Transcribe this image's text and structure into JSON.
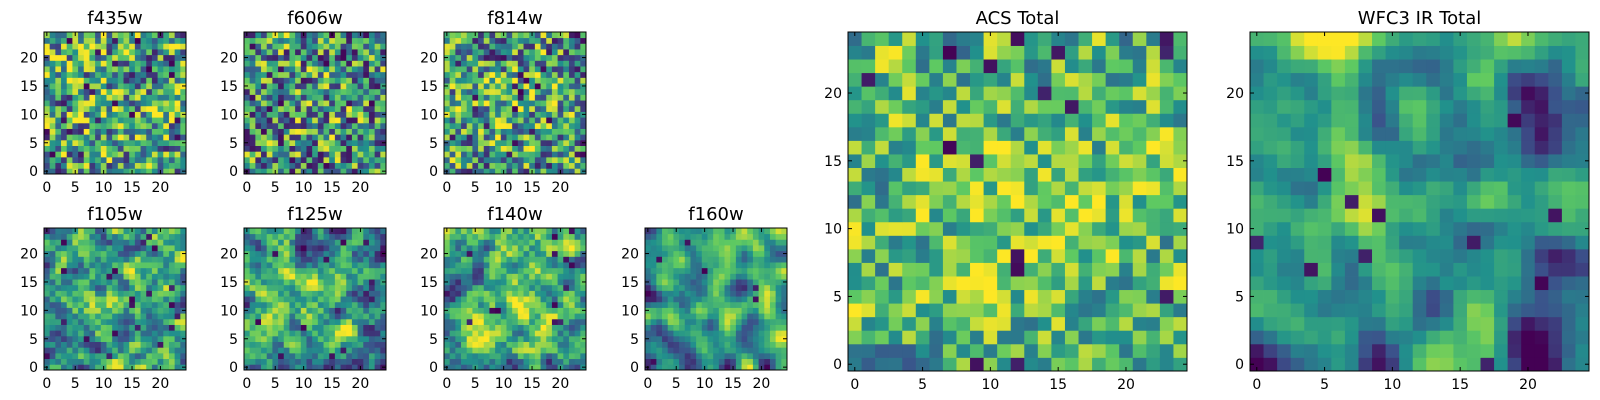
{
  "colormap": [
    "#440154",
    "#3b528b",
    "#21918c",
    "#5ec962",
    "#fde725"
  ],
  "chart_data": [
    {
      "type": "heatmap",
      "title": "f435w",
      "size": 25,
      "seed": 11,
      "smooth": 0.15,
      "dark_rate": 0.05,
      "bias": 0.58,
      "contrast": 0.95,
      "center_boost": 0.05,
      "xticks": [
        0,
        5,
        10,
        15,
        20
      ],
      "yticks": [
        0,
        5,
        10,
        15,
        20
      ],
      "xlim": [
        0,
        25
      ],
      "ylim": [
        0,
        25
      ]
    },
    {
      "type": "heatmap",
      "title": "f606w",
      "size": 25,
      "seed": 23,
      "smooth": 0.2,
      "dark_rate": 0.06,
      "bias": 0.52,
      "contrast": 0.95,
      "center_boost": 0.06,
      "xticks": [
        0,
        5,
        10,
        15,
        20
      ],
      "yticks": [
        0,
        5,
        10,
        15,
        20
      ],
      "xlim": [
        0,
        25
      ],
      "ylim": [
        0,
        25
      ]
    },
    {
      "type": "heatmap",
      "title": "f814w",
      "size": 25,
      "seed": 37,
      "smooth": 0.25,
      "dark_rate": 0.05,
      "bias": 0.54,
      "contrast": 0.95,
      "center_boost": 0.12,
      "xticks": [
        0,
        5,
        10,
        15,
        20
      ],
      "yticks": [
        0,
        5,
        10,
        15,
        20
      ],
      "xlim": [
        0,
        25
      ],
      "ylim": [
        0,
        25
      ]
    },
    {
      "type": "heatmap",
      "title": "f105w",
      "size": 25,
      "seed": 41,
      "smooth": 0.55,
      "dark_rate": 0.03,
      "bias": 0.55,
      "contrast": 1.05,
      "center_boost": 0.2,
      "xticks": [
        0,
        5,
        10,
        15,
        20
      ],
      "yticks": [
        0,
        5,
        10,
        15,
        20
      ],
      "xlim": [
        0,
        25
      ],
      "ylim": [
        0,
        25
      ]
    },
    {
      "type": "heatmap",
      "title": "f125w",
      "size": 25,
      "seed": 53,
      "smooth": 0.55,
      "dark_rate": 0.03,
      "bias": 0.52,
      "contrast": 1.05,
      "center_boost": 0.12,
      "xticks": [
        0,
        5,
        10,
        15,
        20
      ],
      "yticks": [
        0,
        5,
        10,
        15,
        20
      ],
      "xlim": [
        0,
        25
      ],
      "ylim": [
        0,
        25
      ]
    },
    {
      "type": "heatmap",
      "title": "f140w",
      "size": 25,
      "seed": 67,
      "smooth": 0.6,
      "dark_rate": 0.02,
      "bias": 0.55,
      "contrast": 1.0,
      "center_boost": 0.15,
      "xticks": [
        0,
        5,
        10,
        15,
        20
      ],
      "yticks": [
        0,
        5,
        10,
        15,
        20
      ],
      "xlim": [
        0,
        25
      ],
      "ylim": [
        0,
        25
      ]
    },
    {
      "type": "heatmap",
      "title": "f160w",
      "size": 25,
      "seed": 79,
      "smooth": 0.65,
      "dark_rate": 0.02,
      "bias": 0.5,
      "contrast": 1.05,
      "center_boost": 0.14,
      "xticks": [
        0,
        5,
        10,
        15,
        20
      ],
      "yticks": [
        0,
        5,
        10,
        15,
        20
      ],
      "xlim": [
        0,
        25
      ],
      "ylim": [
        0,
        25
      ]
    },
    {
      "type": "heatmap",
      "title": "ACS Total",
      "size": 25,
      "seed": 97,
      "smooth": 0.35,
      "dark_rate": 0.03,
      "bias": 0.64,
      "contrast": 0.75,
      "center_boost": 0.12,
      "xticks": [
        0,
        5,
        10,
        15,
        20
      ],
      "yticks": [
        0,
        5,
        10,
        15,
        20
      ],
      "xlim": [
        0,
        25
      ],
      "ylim": [
        0,
        25
      ]
    },
    {
      "type": "heatmap",
      "title": "WFC3 IR Total",
      "size": 25,
      "seed": 131,
      "smooth": 0.65,
      "dark_rate": 0.03,
      "bias": 0.42,
      "contrast": 1.1,
      "center_boost": 0.2,
      "top_boost": 0.25,
      "xticks": [
        0,
        5,
        10,
        15,
        20
      ],
      "yticks": [
        0,
        5,
        10,
        15,
        20
      ],
      "xlim": [
        0,
        25
      ],
      "ylim": [
        0,
        25
      ]
    }
  ]
}
